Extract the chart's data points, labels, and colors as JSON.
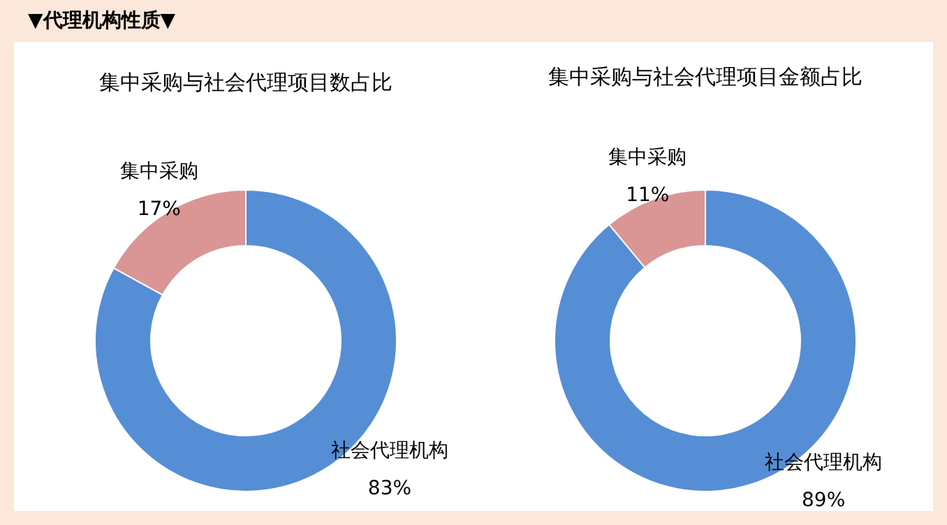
{
  "chart_data": [
    {
      "type": "donut",
      "title": "集中采购与社会代理项目数占比",
      "categories": [
        "社会代理机构",
        "集中采购"
      ],
      "values": [
        83,
        17
      ],
      "colors": [
        "#558ed5",
        "#d99694"
      ],
      "value_labels": [
        "83%",
        "17%"
      ],
      "annotations": [
        "▼代理机构性质▼"
      ]
    },
    {
      "type": "donut",
      "title": "集中采购与社会代理项目金额占比",
      "categories": [
        "社会代理机构",
        "集中采购"
      ],
      "values": [
        89,
        11
      ],
      "colors": [
        "#558ed5",
        "#d99694"
      ],
      "value_labels": [
        "89%",
        "11%"
      ]
    }
  ]
}
